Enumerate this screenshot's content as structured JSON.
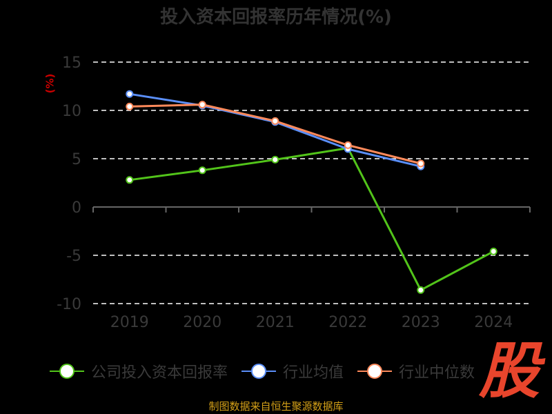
{
  "title": "投入资本回报率历年情况(%)",
  "unit": "(%)",
  "source": "制图数据来自恒生聚源数据库",
  "logo_text": "股",
  "colors": {
    "company": "#52c41a",
    "industry_avg": "#5b8ff9",
    "industry_median": "#ff8a5b",
    "grid": "#ffffff",
    "axis": "#666666"
  },
  "chart_data": {
    "type": "line",
    "title": "投入资本回报率历年情况(%)",
    "ylabel": "(%)",
    "xlabel": "",
    "categories": [
      "2019",
      "2020",
      "2021",
      "2022",
      "2023",
      "2024"
    ],
    "ylim": [
      -10,
      15
    ],
    "yticks": [
      15,
      10,
      5,
      0,
      -5,
      -10
    ],
    "grid": true,
    "legend_position": "bottom",
    "series": [
      {
        "name": "公司投入资本回报率",
        "color": "#52c41a",
        "values": [
          2.8,
          3.8,
          4.9,
          6.1,
          -8.6,
          -4.6
        ]
      },
      {
        "name": "行业均值",
        "color": "#5b8ff9",
        "values": [
          11.7,
          10.5,
          8.8,
          6.0,
          4.2,
          null
        ]
      },
      {
        "name": "行业中位数",
        "color": "#ff8a5b",
        "values": [
          10.4,
          10.6,
          8.9,
          6.4,
          4.5,
          null
        ]
      }
    ]
  },
  "legend": [
    {
      "label": "公司投入资本回报率",
      "color": "#52c41a"
    },
    {
      "label": "行业均值",
      "color": "#5b8ff9"
    },
    {
      "label": "行业中位数",
      "color": "#ff8a5b"
    }
  ]
}
